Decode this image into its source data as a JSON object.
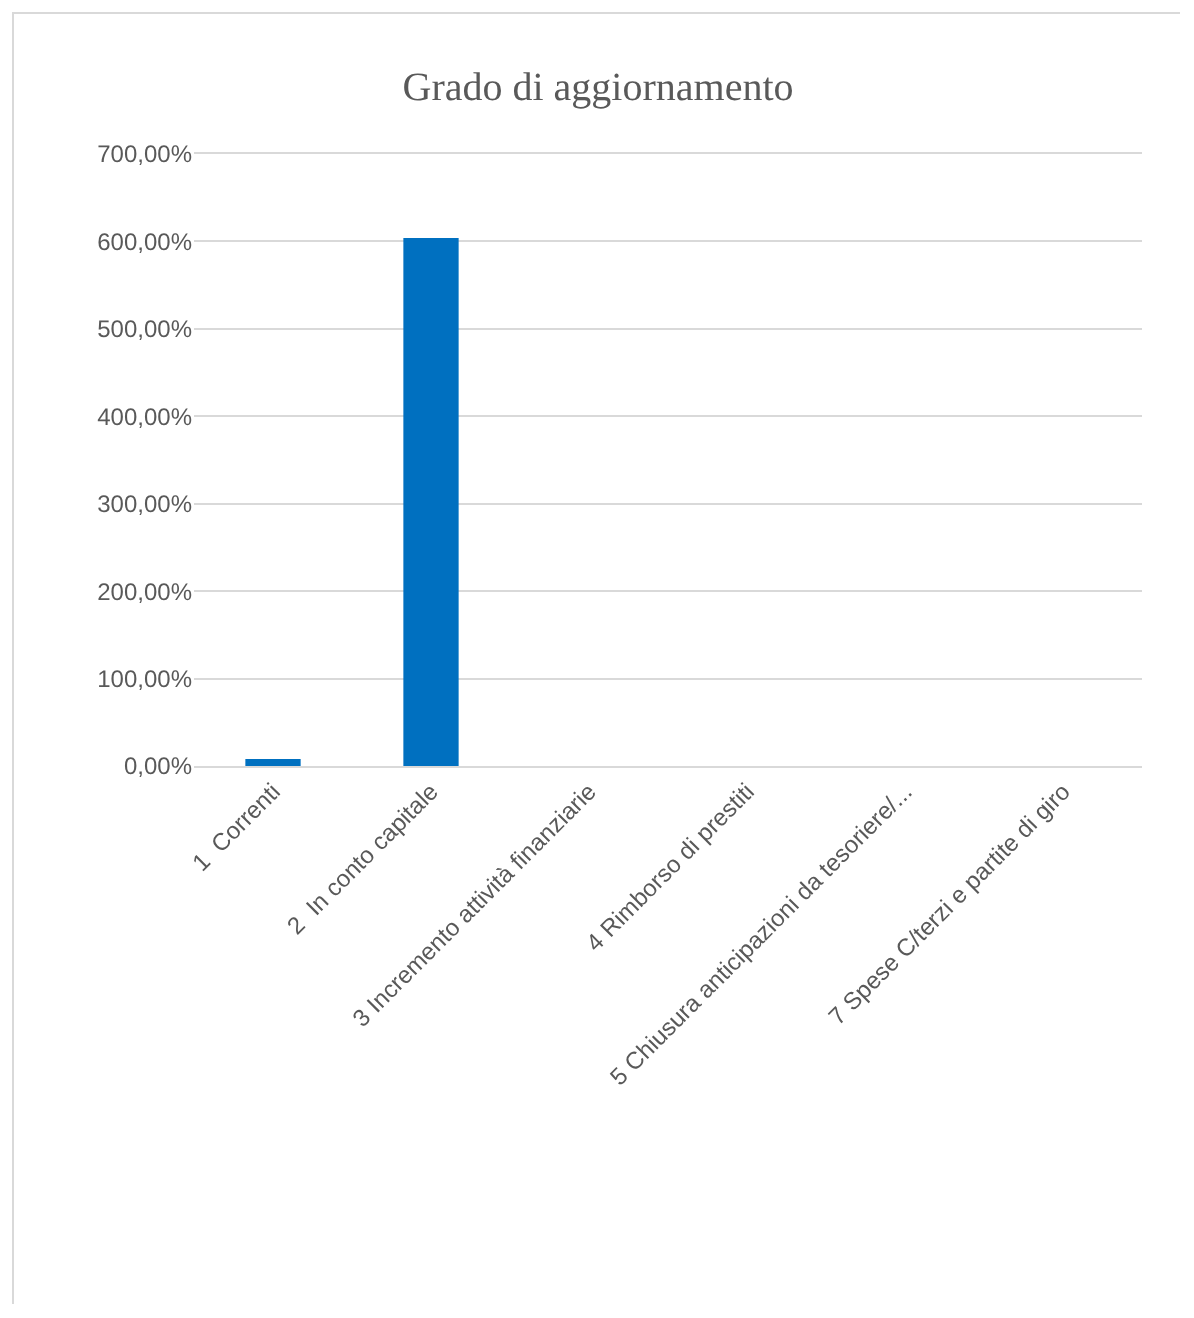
{
  "chart_data": {
    "type": "bar",
    "title": "Grado di aggiornamento",
    "categories": [
      "1  Correnti",
      "2  In conto capitale",
      "3 Incremento attività finanziarie",
      "4 Rimborso di prestiti",
      "5 Chiusura anticipazioni da tesoriere/...",
      "7 Spese C/terzi e partite di giro"
    ],
    "values": [
      8,
      604,
      0,
      0,
      0,
      0
    ],
    "color": "#0070c0",
    "ylim": [
      0,
      700
    ],
    "yticks": [
      {
        "value": 0,
        "label": "0,00%"
      },
      {
        "value": 100,
        "label": "100,00%"
      },
      {
        "value": 200,
        "label": "200,00%"
      },
      {
        "value": 300,
        "label": "300,00%"
      },
      {
        "value": 400,
        "label": "400,00%"
      },
      {
        "value": 500,
        "label": "500,00%"
      },
      {
        "value": 600,
        "label": "600,00%"
      },
      {
        "value": 700,
        "label": "700,00%"
      }
    ],
    "grid": "y"
  }
}
